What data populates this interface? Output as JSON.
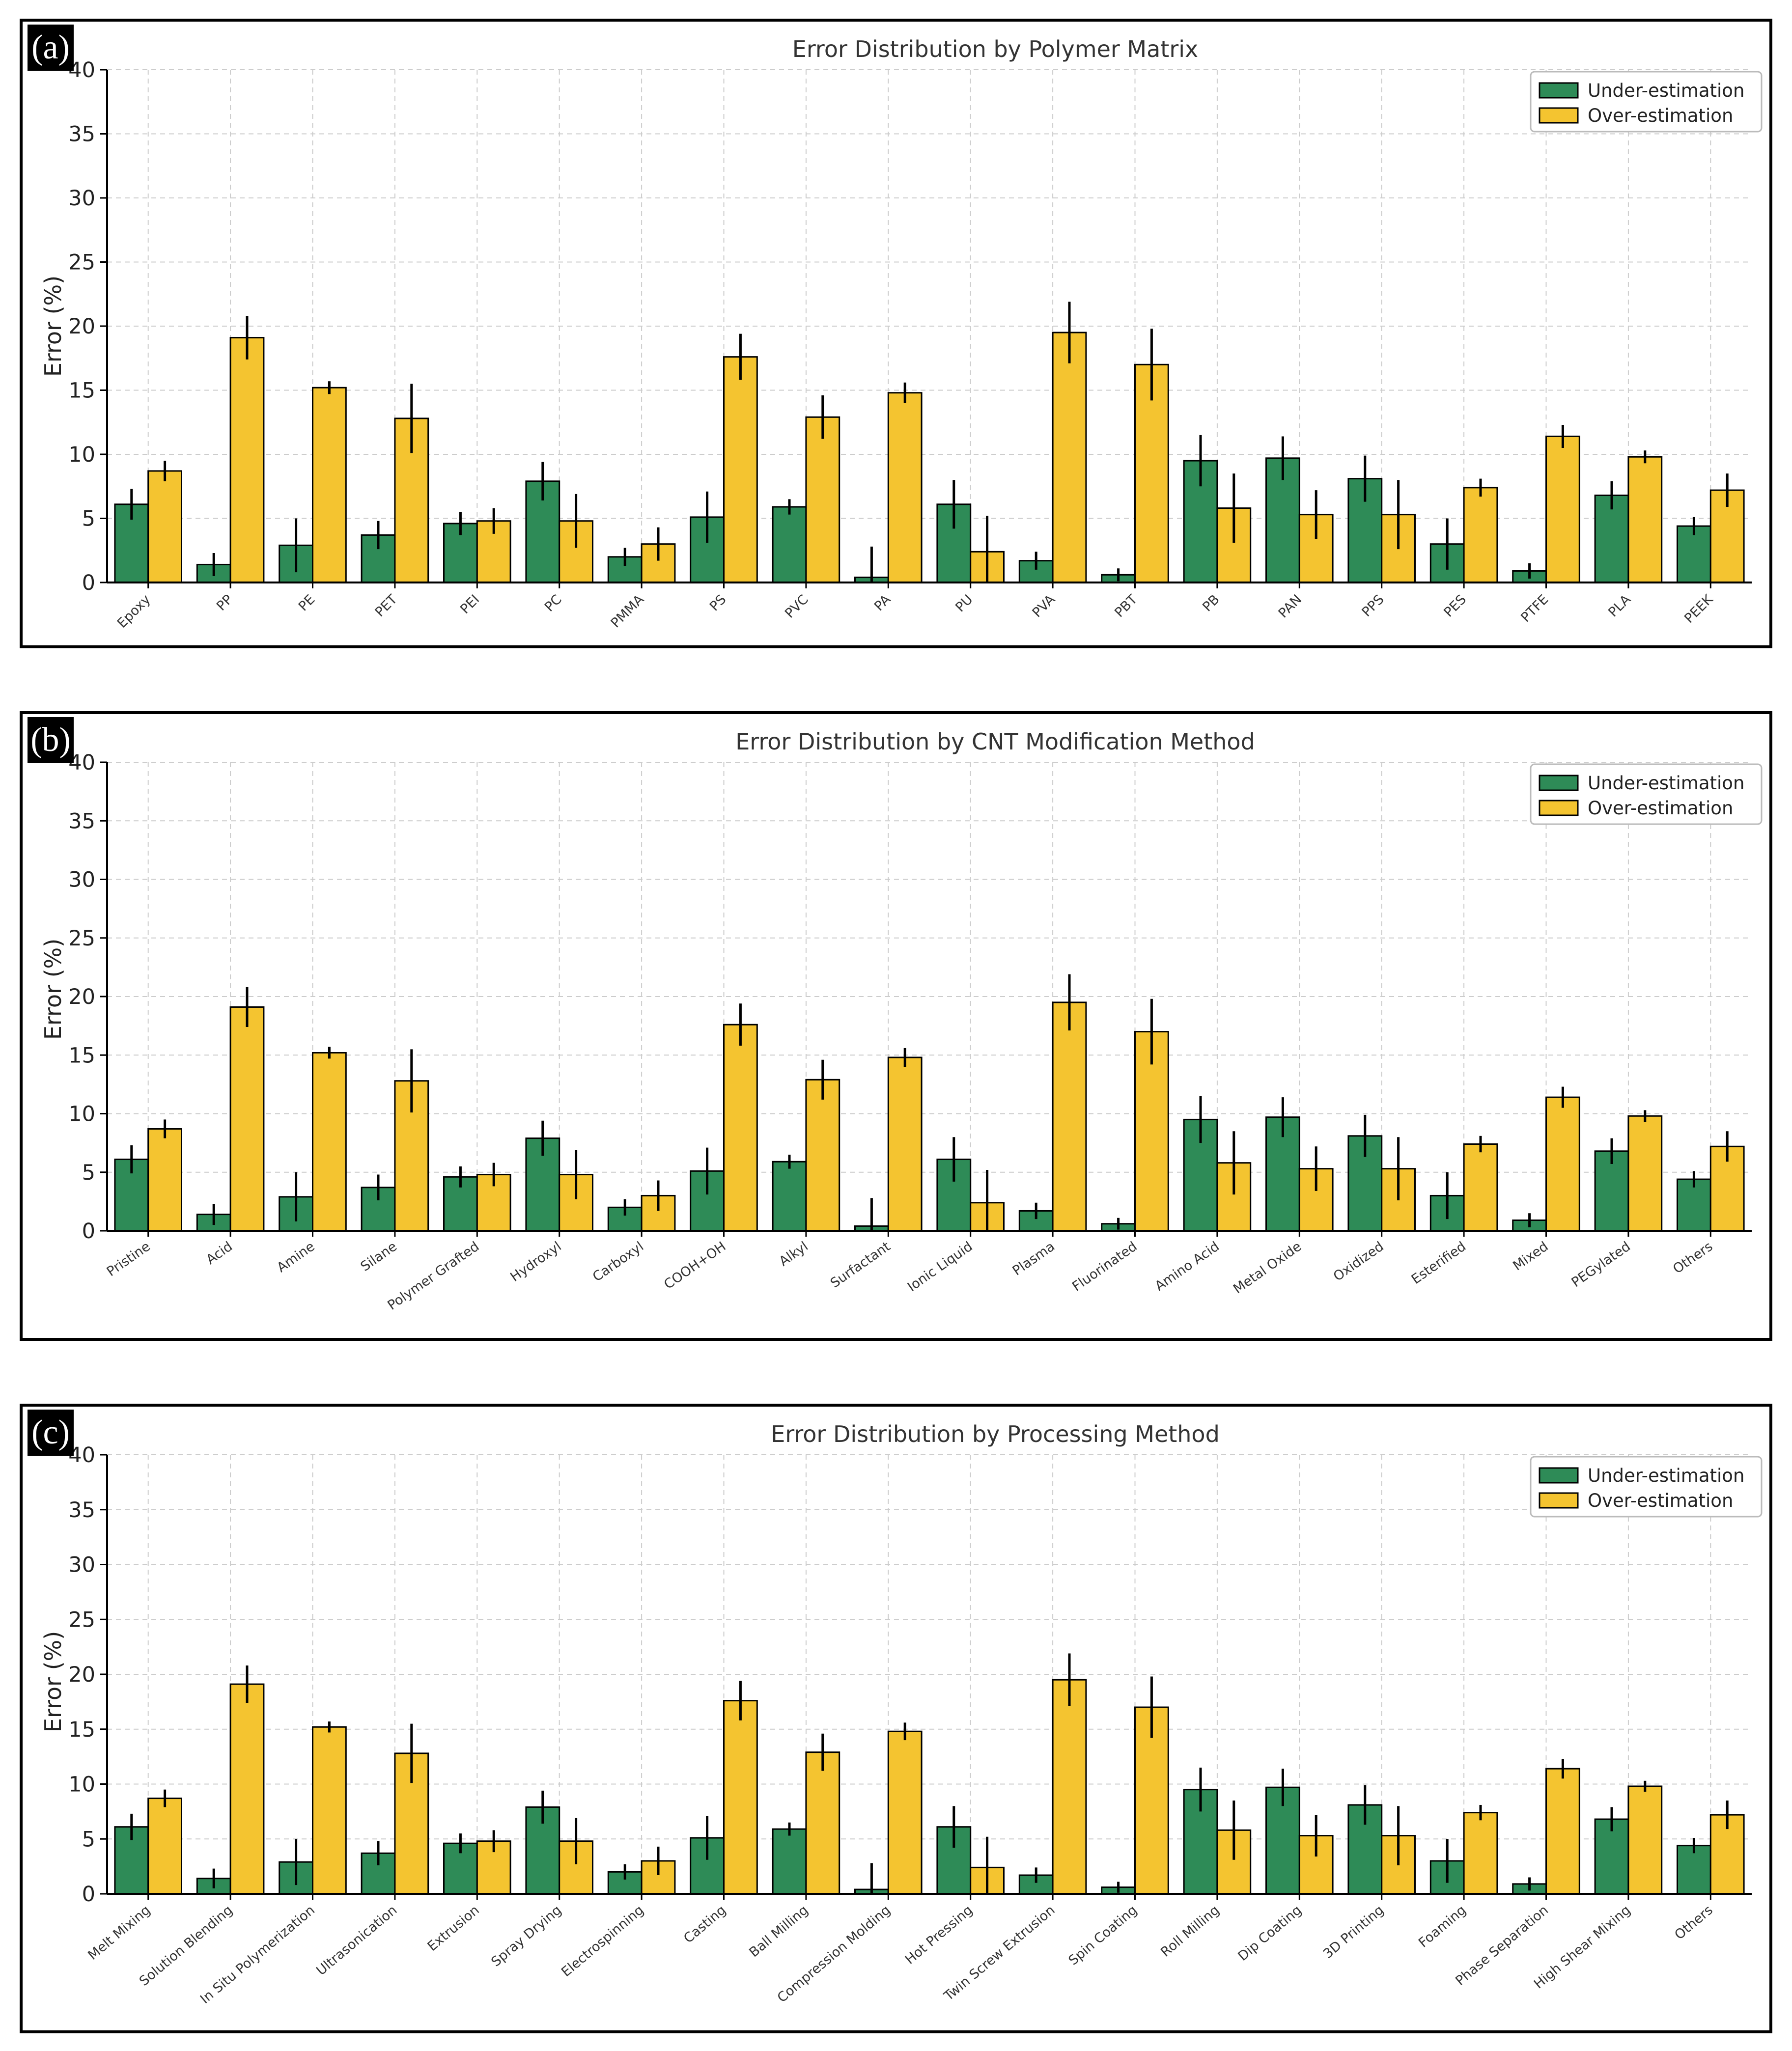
{
  "colors": {
    "under": "#2e8b57",
    "over": "#f4c430",
    "error_bar": "#000000",
    "grid": "#cccccc"
  },
  "chart_data": [
    {
      "panel_label": "(a)",
      "type": "bar",
      "title": "Error Distribution by Polymer Matrix",
      "xlabel": "",
      "ylabel": "Error (%)",
      "ylim": [
        0,
        40
      ],
      "yticks": [
        "0",
        "5",
        "10",
        "15",
        "20",
        "25",
        "30",
        "35",
        "40"
      ],
      "grid": true,
      "legend_position": "top-right",
      "categories": [
        "Epoxy",
        "PP",
        "PE",
        "PET",
        "PEI",
        "PC",
        "PMMA",
        "PS",
        "PVC",
        "PA",
        "PU",
        "PVA",
        "PBT",
        "PB",
        "PAN",
        "PPS",
        "PES",
        "PTFE",
        "PLA",
        "PEEK"
      ],
      "series": [
        {
          "name": "Under-estimation",
          "values": [
            6.1,
            1.4,
            2.9,
            3.7,
            4.6,
            7.9,
            2.0,
            5.1,
            5.9,
            0.4,
            6.1,
            1.7,
            0.6,
            9.5,
            9.7,
            8.1,
            3.0,
            0.9,
            6.8,
            4.4
          ],
          "errors": [
            1.2,
            0.9,
            2.1,
            1.1,
            0.9,
            1.5,
            0.7,
            2.0,
            0.6,
            2.4,
            1.9,
            0.7,
            0.5,
            2.0,
            1.7,
            1.8,
            2.0,
            0.6,
            1.1,
            0.7
          ]
        },
        {
          "name": "Over-estimation",
          "values": [
            8.7,
            19.1,
            15.2,
            12.8,
            4.8,
            4.8,
            3.0,
            17.6,
            12.9,
            14.8,
            2.4,
            19.5,
            17.0,
            5.8,
            5.3,
            5.3,
            7.4,
            11.4,
            9.8,
            7.2
          ],
          "errors": [
            0.8,
            1.7,
            0.5,
            2.7,
            1.0,
            2.1,
            1.3,
            1.8,
            1.7,
            0.8,
            2.8,
            2.4,
            2.8,
            2.7,
            1.9,
            2.7,
            0.7,
            0.9,
            0.5,
            1.3
          ]
        }
      ]
    },
    {
      "panel_label": "(b)",
      "type": "bar",
      "title": "Error Distribution by CNT Modification Method",
      "xlabel": "",
      "ylabel": "Error (%)",
      "ylim": [
        0,
        40
      ],
      "yticks": [
        "0",
        "5",
        "10",
        "15",
        "20",
        "25",
        "30",
        "35",
        "40"
      ],
      "grid": true,
      "legend_position": "top-right",
      "categories": [
        "Pristine",
        "Acid",
        "Amine",
        "Silane",
        "Polymer Grafted",
        "Hydroxyl",
        "Carboxyl",
        "COOH+OH",
        "Alkyl",
        "Surfactant",
        "Ionic Liquid",
        "Plasma",
        "Fluorinated",
        "Amino Acid",
        "Metal Oxide",
        "Oxidized",
        "Esterified",
        "Mixed",
        "PEGylated",
        "Others"
      ],
      "series": [
        {
          "name": "Under-estimation",
          "values": [
            6.1,
            1.4,
            2.9,
            3.7,
            4.6,
            7.9,
            2.0,
            5.1,
            5.9,
            0.4,
            6.1,
            1.7,
            0.6,
            9.5,
            9.7,
            8.1,
            3.0,
            0.9,
            6.8,
            4.4
          ],
          "errors": [
            1.2,
            0.9,
            2.1,
            1.1,
            0.9,
            1.5,
            0.7,
            2.0,
            0.6,
            2.4,
            1.9,
            0.7,
            0.5,
            2.0,
            1.7,
            1.8,
            2.0,
            0.6,
            1.1,
            0.7
          ]
        },
        {
          "name": "Over-estimation",
          "values": [
            8.7,
            19.1,
            15.2,
            12.8,
            4.8,
            4.8,
            3.0,
            17.6,
            12.9,
            14.8,
            2.4,
            19.5,
            17.0,
            5.8,
            5.3,
            5.3,
            7.4,
            11.4,
            9.8,
            7.2
          ],
          "errors": [
            0.8,
            1.7,
            0.5,
            2.7,
            1.0,
            2.1,
            1.3,
            1.8,
            1.7,
            0.8,
            2.8,
            2.4,
            2.8,
            2.7,
            1.9,
            2.7,
            0.7,
            0.9,
            0.5,
            1.3
          ]
        }
      ]
    },
    {
      "panel_label": "(c)",
      "type": "bar",
      "title": "Error Distribution by Processing Method",
      "xlabel": "",
      "ylabel": "Error (%)",
      "ylim": [
        0,
        40
      ],
      "yticks": [
        "0",
        "5",
        "10",
        "15",
        "20",
        "25",
        "30",
        "35",
        "40"
      ],
      "grid": true,
      "legend_position": "top-right",
      "categories": [
        "Melt Mixing",
        "Solution Blending",
        "In Situ Polymerization",
        "Ultrasonication",
        "Extrusion",
        "Spray Drying",
        "Electrospinning",
        "Casting",
        "Ball Milling",
        "Compression Molding",
        "Hot Pressing",
        "Twin Screw Extrusion",
        "Spin Coating",
        "Roll Milling",
        "Dip Coating",
        "3D Printing",
        "Foaming",
        "Phase Separation",
        "High Shear Mixing",
        "Others"
      ],
      "series": [
        {
          "name": "Under-estimation",
          "values": [
            6.1,
            1.4,
            2.9,
            3.7,
            4.6,
            7.9,
            2.0,
            5.1,
            5.9,
            0.4,
            6.1,
            1.7,
            0.6,
            9.5,
            9.7,
            8.1,
            3.0,
            0.9,
            6.8,
            4.4
          ],
          "errors": [
            1.2,
            0.9,
            2.1,
            1.1,
            0.9,
            1.5,
            0.7,
            2.0,
            0.6,
            2.4,
            1.9,
            0.7,
            0.5,
            2.0,
            1.7,
            1.8,
            2.0,
            0.6,
            1.1,
            0.7
          ]
        },
        {
          "name": "Over-estimation",
          "values": [
            8.7,
            19.1,
            15.2,
            12.8,
            4.8,
            4.8,
            3.0,
            17.6,
            12.9,
            14.8,
            2.4,
            19.5,
            17.0,
            5.8,
            5.3,
            5.3,
            7.4,
            11.4,
            9.8,
            7.2
          ],
          "errors": [
            0.8,
            1.7,
            0.5,
            2.7,
            1.0,
            2.1,
            1.3,
            1.8,
            1.7,
            0.8,
            2.8,
            2.4,
            2.8,
            2.7,
            1.9,
            2.7,
            0.7,
            0.9,
            0.5,
            1.3
          ]
        }
      ]
    }
  ]
}
